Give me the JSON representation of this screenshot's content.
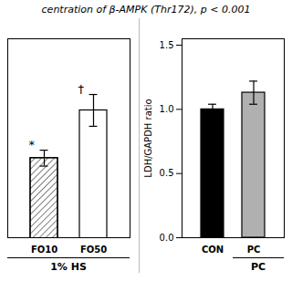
{
  "chart_data": [
    {
      "type": "bar",
      "title": "centration of β-AMPK (Thr172), p < 0.001",
      "categories": [
        "FO10",
        "FO50"
      ],
      "values": [
        1.0,
        1.18
      ],
      "errors": [
        0.03,
        0.06
      ],
      "colors": [
        "white",
        "white"
      ],
      "annotations": [
        "*",
        "†"
      ],
      "xlabel": "1% HS",
      "ylim": [
        0.7,
        1.45
      ],
      "tick_labels": "x"
    },
    {
      "type": "bar",
      "categories": [
        "CON",
        "PC"
      ],
      "values": [
        1.0,
        1.13
      ],
      "errors": [
        0.04,
        0.09
      ],
      "colors": [
        "black",
        "#b0b0b0"
      ],
      "ylabel": "LDH/GAPDH ratio",
      "xlabel": "PC",
      "ylim": [
        0.0,
        1.55
      ],
      "yticks": [
        {
          "value": 0.0,
          "label": "0.0"
        },
        {
          "value": 0.5,
          "label": "0.5"
        },
        {
          "value": 1.0,
          "label": "1.0"
        },
        {
          "value": 1.5,
          "label": "1.5"
        }
      ]
    }
  ]
}
